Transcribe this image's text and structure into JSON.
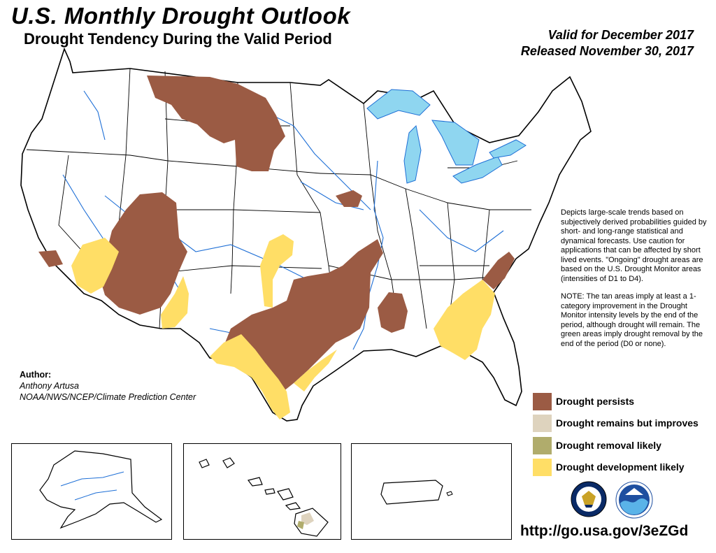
{
  "header": {
    "title": "U.S. Monthly Drought Outlook",
    "subtitle": "Drought Tendency During the Valid Period",
    "valid_line": "Valid for December 2017",
    "released_line": "Released November 30, 2017"
  },
  "description": {
    "paragraph1": "Depicts large-scale trends based on subjectively derived probabilities guided by short- and long-range statistical and dynamical forecasts. Use caution for applications that can be affected by short lived events. \"Ongoing\" drought areas are based on the U.S. Drought Monitor areas (intensities of D1 to D4).",
    "paragraph2": "NOTE: The tan areas imply at least a 1-category improvement in the Drought Monitor intensity levels by the end of the period, although drought will remain. The green areas imply drought removal by the end of the period (D0 or none)."
  },
  "author": {
    "label": "Author:",
    "name": "Anthony Artusa",
    "org": "NOAA/NWS/NCEP/Climate Prediction Center"
  },
  "legend": [
    {
      "label": "Drought persists",
      "color": "#9B5B44"
    },
    {
      "label": "Drought remains but improves",
      "color": "#DED3BE"
    },
    {
      "label": "Drought removal likely",
      "color": "#B0AC6C"
    },
    {
      "label": "Drought development likely",
      "color": "#FFDE66"
    }
  ],
  "colors": {
    "persists": "#9B5B44",
    "improves": "#DED3BE",
    "removal": "#B0AC6C",
    "development": "#FFDE66",
    "water": "#8FD6F0",
    "rivers": "#1E6FD6",
    "borders": "#000000"
  },
  "insets": [
    "alaska",
    "hawaii",
    "puerto-rico"
  ],
  "logos": [
    "doc-seal-icon",
    "noaa-logo-icon"
  ],
  "url": "http://go.usa.gov/3eZGd"
}
